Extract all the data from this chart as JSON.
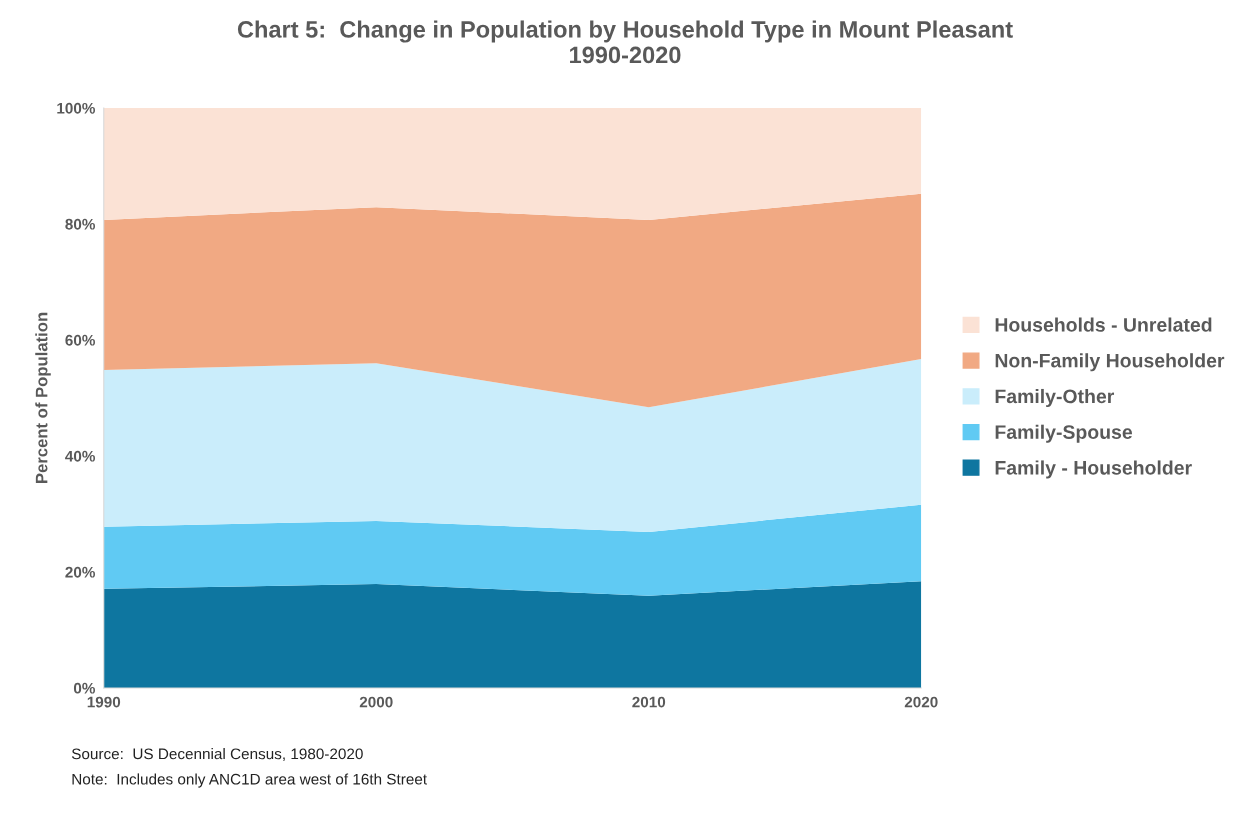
{
  "chart_data": {
    "type": "area",
    "stacked": true,
    "title": "Chart 5:  Change in Population by Household Type in Mount Pleasant\n1990-2020",
    "ylabel": "Percent of Population",
    "x": [
      1990,
      2000,
      2010,
      2020
    ],
    "xlim": [
      1990,
      2020
    ],
    "xticks": [
      1990,
      2000,
      2010,
      2020
    ],
    "ylim": [
      0,
      100
    ],
    "yticks": [
      {
        "value": 0,
        "label": "0%"
      },
      {
        "value": 20,
        "label": "20%"
      },
      {
        "value": 40,
        "label": "40%"
      },
      {
        "value": 60,
        "label": "60%"
      },
      {
        "value": 80,
        "label": "80%"
      },
      {
        "value": 100,
        "label": "100%"
      }
    ],
    "series": [
      {
        "name": "Family - Householder",
        "color": "#0e76a0",
        "values": [
          17.1,
          17.9,
          15.9,
          18.4
        ]
      },
      {
        "name": "Family-Spouse",
        "color": "#60caf3",
        "values": [
          10.7,
          10.9,
          11.0,
          13.2
        ]
      },
      {
        "name": "Family-Other",
        "color": "#caedfb",
        "values": [
          27.0,
          27.2,
          21.5,
          25.1
        ]
      },
      {
        "name": "Non-Family Householder",
        "color": "#f1a983",
        "values": [
          25.9,
          26.9,
          32.3,
          28.5
        ]
      },
      {
        "name": "Households - Unrelated",
        "color": "#fbe2d5",
        "values": [
          19.3,
          17.1,
          19.3,
          14.8
        ]
      }
    ],
    "legend": "right",
    "grid": false,
    "annotations": [
      "Source:  US Decennial Census, 1980-2020",
      "Note:  Includes only ANC1D area west of 16th Street"
    ]
  }
}
